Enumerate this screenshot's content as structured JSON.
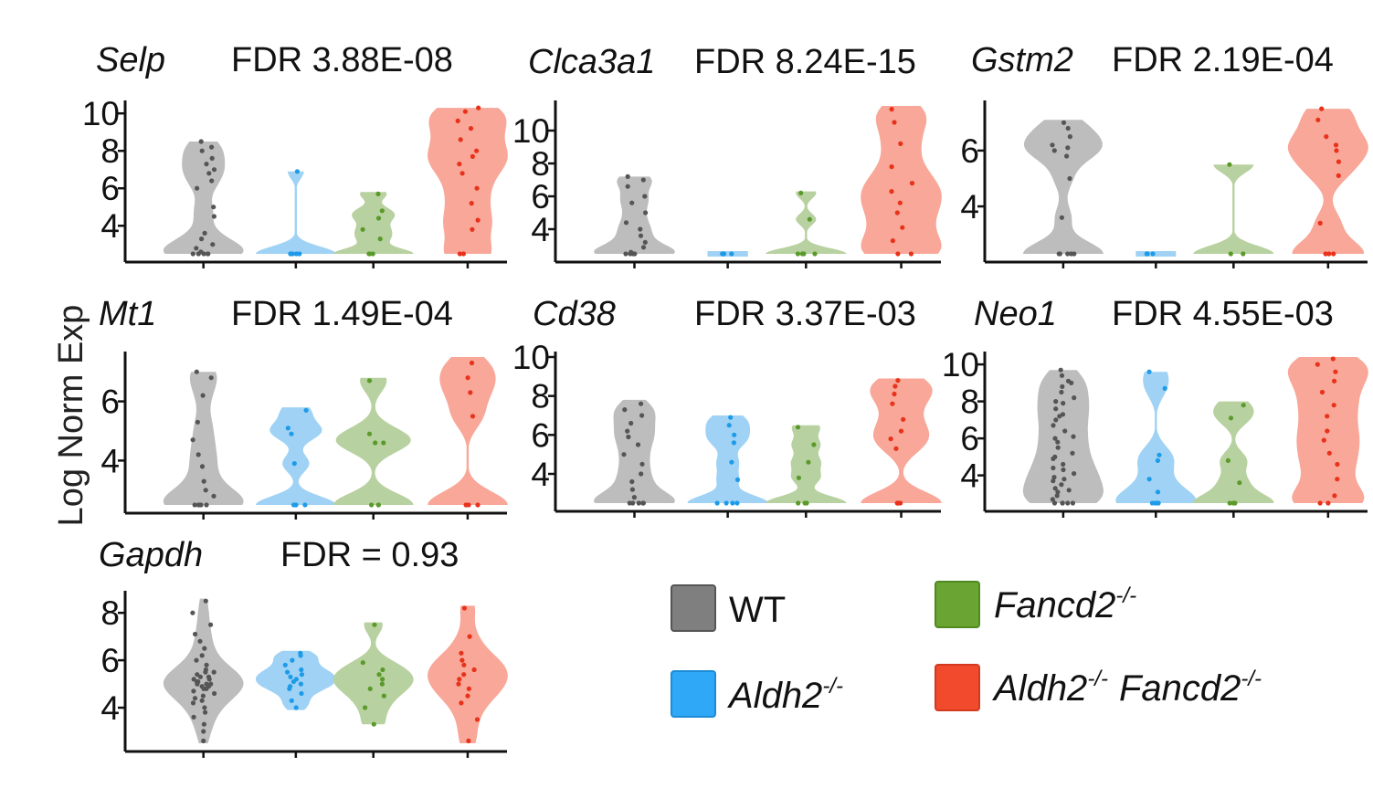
{
  "ylabel": "Log Norm Exp",
  "groups": [
    {
      "key": "WT",
      "color": "#bdbdbd",
      "dot": "#555555",
      "swatch": "#7f7f7f",
      "swatch_border": "#555555"
    },
    {
      "key": "Aldh2",
      "color": "#9fd2f5",
      "dot": "#1e9be8",
      "swatch": "#2ea8f7",
      "swatch_border": "#1e8bd6"
    },
    {
      "key": "Fancd2",
      "color": "#b8d1a0",
      "dot": "#5a9a2a",
      "swatch": "#6aa432",
      "swatch_border": "#4e8a20"
    },
    {
      "key": "DKO",
      "color": "#f8a799",
      "dot": "#e8321a",
      "swatch": "#f24a2c",
      "swatch_border": "#d23a20"
    }
  ],
  "legend": [
    {
      "label": "WT",
      "sup": "",
      "label2": "",
      "sup2": ""
    },
    {
      "label": "Fancd2",
      "sup": "-/-",
      "label2": "",
      "sup2": ""
    },
    {
      "label": "Aldh2",
      "sup": "-/-",
      "label2": "",
      "sup2": ""
    },
    {
      "label": "Aldh2",
      "sup": "-/-",
      "label2": "Fancd2",
      "sup2": "-/-"
    }
  ],
  "chart_data": [
    {
      "type": "violin",
      "gene": "Selp",
      "stat": "FDR 3.88E-08",
      "ylim": [
        2.5,
        10.4
      ],
      "yticks": [
        4,
        6,
        8,
        10
      ],
      "series": [
        {
          "group": "WT",
          "min": 2.5,
          "max": 8.5,
          "points": [
            2.5,
            2.5,
            2.5,
            2.5,
            2.5,
            2.6,
            2.8,
            3.0,
            3.3,
            3.6,
            4.5,
            5.0,
            6.0,
            6.4,
            6.8,
            7.0,
            7.3,
            7.6,
            8.0,
            8.2,
            8.5
          ]
        },
        {
          "group": "Aldh2",
          "min": 2.5,
          "max": 6.9,
          "points": [
            2.5,
            2.5,
            2.5,
            2.5,
            2.5,
            6.9
          ]
        },
        {
          "group": "Fancd2",
          "min": 2.5,
          "max": 5.8,
          "points": [
            2.5,
            2.5,
            2.5,
            3.3,
            3.8,
            4.4,
            4.8,
            5.7
          ]
        },
        {
          "group": "DKO",
          "min": 2.5,
          "max": 10.3,
          "points": [
            2.5,
            2.5,
            3.8,
            4.3,
            5.2,
            6.0,
            6.8,
            7.3,
            7.7,
            8.0,
            8.6,
            9.2,
            9.6,
            10.1,
            10.3
          ]
        }
      ]
    },
    {
      "type": "violin",
      "gene": "Clca3a1",
      "stat": "FDR 8.24E-15",
      "ylim": [
        2.5,
        11.5
      ],
      "yticks": [
        4,
        6,
        8,
        10
      ],
      "series": [
        {
          "group": "WT",
          "min": 2.5,
          "max": 7.2,
          "points": [
            2.5,
            2.5,
            2.5,
            2.5,
            2.6,
            2.9,
            3.2,
            3.6,
            4.0,
            4.4,
            5.0,
            5.6,
            6.0,
            6.6,
            7.0,
            7.2
          ]
        },
        {
          "group": "Aldh2",
          "min": 2.5,
          "max": 2.5,
          "points": [
            2.5,
            2.5,
            2.5,
            2.5
          ]
        },
        {
          "group": "Fancd2",
          "min": 2.5,
          "max": 6.3,
          "points": [
            2.5,
            2.5,
            2.5,
            2.5,
            4.6,
            6.2
          ]
        },
        {
          "group": "DKO",
          "min": 2.5,
          "max": 11.5,
          "points": [
            2.5,
            2.5,
            3.3,
            4.1,
            5.0,
            5.6,
            6.3,
            6.8,
            7.8,
            9.2,
            10.5,
            11.3
          ]
        }
      ]
    },
    {
      "type": "violin",
      "gene": "Gstm2",
      "stat": "FDR 2.19E-04",
      "ylim": [
        2.3,
        7.6
      ],
      "yticks": [
        4,
        6
      ],
      "series": [
        {
          "group": "WT",
          "min": 2.3,
          "max": 7.1,
          "points": [
            2.3,
            2.3,
            2.3,
            2.3,
            2.3,
            3.6,
            5.0,
            5.8,
            6.0,
            6.1,
            6.2,
            6.5,
            6.8,
            7.0
          ]
        },
        {
          "group": "Aldh2",
          "min": 2.3,
          "max": 2.3,
          "points": [
            2.3,
            2.3,
            2.3
          ]
        },
        {
          "group": "Fancd2",
          "min": 2.3,
          "max": 5.5,
          "points": [
            2.3,
            2.3,
            5.5
          ]
        },
        {
          "group": "DKO",
          "min": 2.3,
          "max": 7.5,
          "points": [
            2.3,
            2.3,
            2.3,
            3.4,
            5.1,
            5.6,
            6.0,
            6.2,
            6.5,
            7.1,
            7.5
          ]
        }
      ]
    },
    {
      "type": "violin",
      "gene": "Mt1",
      "stat": "FDR 1.49E-04",
      "ylim": [
        2.5,
        7.5
      ],
      "yticks": [
        4,
        6
      ],
      "series": [
        {
          "group": "WT",
          "min": 2.5,
          "max": 7.0,
          "points": [
            2.5,
            2.5,
            2.5,
            2.5,
            2.5,
            2.8,
            3.0,
            3.3,
            3.8,
            4.2,
            4.7,
            5.3,
            6.2,
            6.8,
            7.0
          ]
        },
        {
          "group": "Aldh2",
          "min": 2.5,
          "max": 5.8,
          "points": [
            2.5,
            2.5,
            2.5,
            3.9,
            4.9,
            5.1,
            5.7
          ]
        },
        {
          "group": "Fancd2",
          "min": 2.5,
          "max": 6.8,
          "points": [
            2.5,
            2.5,
            2.5,
            4.6,
            4.6,
            4.9,
            6.7
          ]
        },
        {
          "group": "DKO",
          "min": 2.5,
          "max": 7.5,
          "points": [
            2.5,
            2.5,
            2.5,
            5.5,
            6.3,
            6.8,
            7.3
          ]
        }
      ]
    },
    {
      "type": "violin",
      "gene": "Cd38",
      "stat": "FDR 3.37E-03",
      "ylim": [
        2.5,
        10
      ],
      "yticks": [
        4,
        6,
        8,
        10
      ],
      "series": [
        {
          "group": "WT",
          "min": 2.5,
          "max": 7.8,
          "points": [
            2.5,
            2.5,
            2.5,
            2.5,
            2.5,
            2.8,
            3.2,
            3.6,
            4.0,
            4.5,
            5.0,
            5.5,
            5.9,
            6.2,
            6.6,
            7.0,
            7.3,
            7.6
          ]
        },
        {
          "group": "Aldh2",
          "min": 2.5,
          "max": 7.0,
          "points": [
            2.5,
            2.5,
            2.5,
            2.5,
            3.7,
            4.6,
            5.6,
            6.0,
            6.5,
            6.9
          ]
        },
        {
          "group": "Fancd2",
          "min": 2.5,
          "max": 6.5,
          "points": [
            2.5,
            2.5,
            2.5,
            3.8,
            4.6,
            5.5,
            6.4
          ]
        },
        {
          "group": "DKO",
          "min": 2.5,
          "max": 8.9,
          "points": [
            2.5,
            2.5,
            2.5,
            2.5,
            5.3,
            5.8,
            6.2,
            6.8,
            7.6,
            8.1,
            8.5,
            8.8
          ]
        }
      ]
    },
    {
      "type": "violin",
      "gene": "Neo1",
      "stat": "FDR 4.55E-03",
      "ylim": [
        2.5,
        10.4
      ],
      "yticks": [
        4,
        6,
        8,
        10
      ],
      "series": [
        {
          "group": "WT",
          "min": 2.5,
          "max": 9.7,
          "points": [
            2.5,
            2.5,
            2.5,
            2.5,
            2.5,
            2.7,
            2.9,
            3.1,
            3.3,
            3.5,
            3.7,
            3.9,
            4.1,
            4.3,
            4.6,
            4.9,
            5.2,
            5.5,
            5.8,
            6.1,
            6.4,
            6.7,
            7.0,
            7.3,
            7.6,
            7.9,
            8.2,
            8.5,
            8.8,
            9.1,
            9.4,
            9.7,
            3.2,
            3.8,
            4.4,
            5.0,
            6.0,
            7.2,
            8.0,
            9.0
          ]
        },
        {
          "group": "Aldh2",
          "min": 2.5,
          "max": 9.6,
          "points": [
            2.5,
            2.5,
            2.5,
            2.5,
            3.1,
            3.8,
            4.8,
            5.1,
            8.7,
            9.6
          ]
        },
        {
          "group": "Fancd2",
          "min": 2.5,
          "max": 8.0,
          "points": [
            2.5,
            2.5,
            2.5,
            3.6,
            4.8,
            7.1,
            7.8
          ]
        },
        {
          "group": "DKO",
          "min": 2.5,
          "max": 10.4,
          "points": [
            2.5,
            2.5,
            2.9,
            3.8,
            4.6,
            5.2,
            5.9,
            6.4,
            7.2,
            7.8,
            8.5,
            9.1,
            9.6,
            10.0,
            10.3
          ]
        }
      ]
    },
    {
      "type": "violin",
      "gene": "Gapdh",
      "stat": "FDR = 0.93",
      "ylim": [
        2.5,
        8.7
      ],
      "yticks": [
        4,
        6,
        8
      ],
      "series": [
        {
          "group": "WT",
          "min": 2.5,
          "max": 8.6,
          "points": [
            2.6,
            3.0,
            3.3,
            3.6,
            3.8,
            4.0,
            4.2,
            4.4,
            4.5,
            4.6,
            4.7,
            4.8,
            4.9,
            5.0,
            5.0,
            5.1,
            5.2,
            5.3,
            5.4,
            5.5,
            5.6,
            5.8,
            6.0,
            6.2,
            6.5,
            6.8,
            7.1,
            7.5,
            8.0,
            8.5,
            4.3,
            4.9,
            5.1,
            5.3,
            5.5,
            4.8,
            5.0,
            5.2
          ]
        },
        {
          "group": "Aldh2",
          "min": 3.9,
          "max": 6.4,
          "points": [
            4.0,
            4.3,
            4.6,
            4.8,
            4.9,
            5.0,
            5.1,
            5.2,
            5.3,
            5.4,
            5.5,
            5.6,
            5.8,
            6.0,
            6.2,
            6.3
          ]
        },
        {
          "group": "Fancd2",
          "min": 3.3,
          "max": 7.6,
          "points": [
            3.3,
            4.0,
            4.5,
            4.8,
            5.0,
            5.2,
            5.4,
            5.6,
            5.9,
            7.5
          ]
        },
        {
          "group": "DKO",
          "min": 2.5,
          "max": 8.3,
          "points": [
            2.6,
            3.5,
            4.2,
            4.5,
            4.8,
            5.0,
            5.2,
            5.4,
            5.6,
            5.8,
            6.0,
            6.3,
            7.0,
            8.2
          ]
        }
      ]
    }
  ]
}
